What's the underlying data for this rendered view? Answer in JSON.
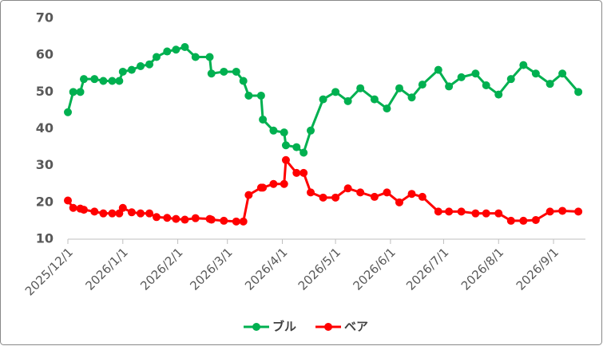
{
  "chart_data": {
    "type": "line",
    "x": [
      "2025/12/1",
      "2025/12/4",
      "2025/12/8",
      "2025/12/10",
      "2025/12/16",
      "2025/12/21",
      "2025/12/26",
      "2025/12/30",
      "2026/1/1",
      "2026/1/6",
      "2026/1/11",
      "2026/1/16",
      "2026/1/20",
      "2026/1/26",
      "2026/1/31",
      "2026/2/5",
      "2026/2/11",
      "2026/2/19",
      "2026/2/20",
      "2026/2/27",
      "2026/3/6",
      "2026/3/10",
      "2026/3/13",
      "2026/3/20",
      "2026/3/21",
      "2026/3/27",
      "2026/4/2",
      "2026/4/3",
      "2026/4/9",
      "2026/4/13",
      "2026/4/17",
      "2026/4/24",
      "2026/5/1",
      "2026/5/8",
      "2026/5/15",
      "2026/5/23",
      "2026/5/30",
      "2026/6/6",
      "2026/6/13",
      "2026/6/19",
      "2026/6/28",
      "2026/7/4",
      "2026/7/11",
      "2026/7/19",
      "2026/7/25",
      "2026/8/1",
      "2026/8/8",
      "2026/8/15",
      "2026/8/22",
      "2026/8/30",
      "2026/9/6",
      "2026/9/15"
    ],
    "series": [
      {
        "name": "ブル",
        "color": "#00b050",
        "values": [
          44.5,
          50,
          50,
          53.5,
          53.5,
          53,
          53,
          53,
          55.5,
          56,
          57,
          57.5,
          59.5,
          61,
          61.5,
          62.2,
          59.5,
          59.5,
          55,
          55.5,
          55.5,
          53,
          49,
          49,
          42.5,
          39.5,
          39,
          35.5,
          35,
          33.5,
          39.5,
          48,
          50,
          47.5,
          51,
          48,
          45.5,
          51,
          48.5,
          52,
          56,
          51.5,
          54,
          55,
          51.8,
          49.3,
          53.5,
          57.3,
          55,
          52.2,
          55,
          50
        ]
      },
      {
        "name": "ベア",
        "color": "#ff0000",
        "values": [
          20.5,
          18.5,
          18.3,
          18,
          17.5,
          17,
          17,
          17,
          18.5,
          17.3,
          17,
          17,
          16,
          15.8,
          15.5,
          15.3,
          15.7,
          15.5,
          15.3,
          15,
          14.8,
          14.8,
          22,
          24,
          24,
          25,
          25,
          31.5,
          28,
          28,
          22.7,
          21.3,
          21.3,
          23.8,
          22.7,
          21.5,
          22.7,
          20,
          22.3,
          21.5,
          17.5,
          17.5,
          17.5,
          17,
          17,
          17,
          15,
          15,
          15.2,
          17.5,
          17.7,
          17.5
        ]
      }
    ],
    "xlim": [
      "2025/12/1",
      "2026/9/19"
    ],
    "xticks": [
      "2025/12/1",
      "2026/1/1",
      "2026/2/1",
      "2026/3/1",
      "2026/4/1",
      "2026/5/1",
      "2026/6/1",
      "2026/7/1",
      "2026/8/1",
      "2026/9/1"
    ],
    "ylim": [
      10,
      70
    ],
    "yticks": [
      10,
      20,
      30,
      40,
      50,
      60,
      70
    ],
    "grid": false,
    "legend": "bottom"
  }
}
